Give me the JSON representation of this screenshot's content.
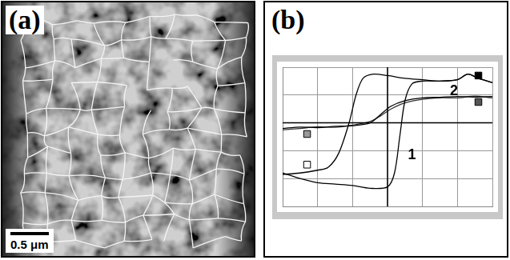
{
  "panel_a": {
    "label": "(a)",
    "scale_bar": "0.5 μm"
  },
  "panel_b": {
    "label": "(b)"
  },
  "chart_data": {
    "type": "line",
    "xlim": [
      0,
      6
    ],
    "ylim": [
      0,
      5
    ],
    "xticks": [
      0,
      1,
      2,
      3,
      4,
      5,
      6
    ],
    "yticks": [
      0,
      1,
      2,
      3,
      4,
      5
    ],
    "grid": true,
    "tick_labels": false,
    "crosshair": {
      "x": 3,
      "y": 3
    },
    "annotations": [
      {
        "text": "1",
        "x": 3.7,
        "y": 1.85
      },
      {
        "text": "2",
        "x": 4.9,
        "y": 4.15
      }
    ],
    "series": [
      {
        "color": "#000000",
        "line_style": "solid",
        "x": [
          0,
          0.5,
          1,
          1.3,
          1.6,
          1.9,
          2.1,
          2.3,
          2.6,
          3,
          3.5,
          4,
          4.5,
          5,
          5.3,
          5.6,
          6
        ],
        "values": [
          1.15,
          1.2,
          1.3,
          1.4,
          1.9,
          3.0,
          4.0,
          4.6,
          4.75,
          4.7,
          4.6,
          4.55,
          4.5,
          4.55,
          4.75,
          4.6,
          4.45
        ]
      },
      {
        "color": "#000000",
        "line_style": "solid",
        "x": [
          0,
          0.5,
          1,
          1.5,
          2,
          2.5,
          3,
          3.2,
          3.35,
          3.5,
          3.7,
          4,
          4.5,
          5,
          5.3,
          5.6,
          6
        ],
        "values": [
          1.2,
          1.0,
          0.85,
          0.8,
          0.75,
          0.65,
          0.7,
          1.2,
          2.5,
          3.8,
          4.4,
          4.5,
          4.5,
          4.55,
          4.75,
          4.6,
          4.45
        ]
      },
      {
        "color": "#000000",
        "line_style": "solid",
        "x": [
          0,
          0.5,
          1,
          1.5,
          2,
          2.5,
          2.8,
          3.1,
          3.5,
          4,
          4.5,
          5,
          5.5,
          6
        ],
        "values": [
          2.8,
          2.85,
          2.83,
          2.88,
          2.9,
          3.0,
          3.3,
          3.6,
          3.8,
          3.9,
          3.92,
          3.95,
          3.93,
          3.95
        ]
      },
      {
        "color": "#333333",
        "line_style": "solid",
        "x": [
          0,
          0.5,
          1,
          1.5,
          2,
          2.5,
          2.8,
          3.1,
          3.5,
          4,
          4.5,
          5,
          5.5,
          6
        ],
        "values": [
          2.75,
          2.8,
          2.86,
          2.84,
          2.92,
          3.05,
          3.25,
          3.5,
          3.72,
          3.85,
          3.9,
          3.9,
          3.96,
          3.9
        ]
      },
      {
        "type": "scatter",
        "marker": "square",
        "color": "#999999",
        "x": [
          0.7
        ],
        "values": [
          2.6
        ]
      },
      {
        "type": "scatter",
        "marker": "square",
        "color": "#ffffff",
        "x": [
          0.7
        ],
        "values": [
          1.5
        ]
      },
      {
        "type": "scatter",
        "marker": "square",
        "color": "#000000",
        "x": [
          5.6
        ],
        "values": [
          4.7
        ]
      },
      {
        "type": "scatter",
        "marker": "square",
        "color": "#555555",
        "x": [
          5.6
        ],
        "values": [
          3.75
        ]
      }
    ]
  }
}
